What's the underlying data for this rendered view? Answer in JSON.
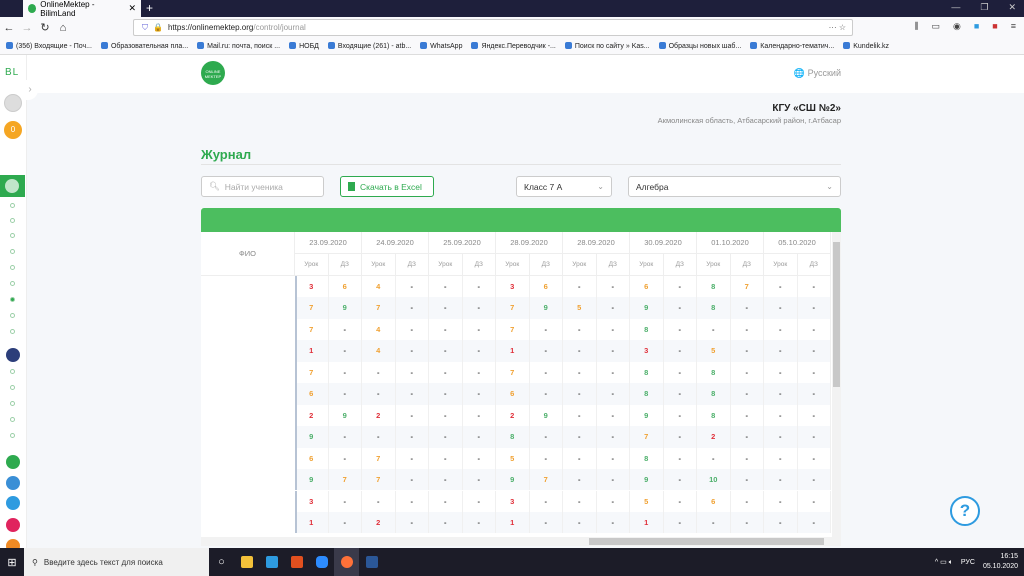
{
  "browser": {
    "tab_title": "OnlineMektep - BilimLand",
    "url_host": "https://onlinemektep.org",
    "url_path": "/control/journal",
    "bookmarks": [
      "(356) Входящие - Поч...",
      "Образовательная пла...",
      "Mail.ru: почта, поиск ...",
      "НОБД",
      "Входящие (261) - atb...",
      "WhatsApp",
      "Яндекс.Переводчик -...",
      "Поиск по сайту » Kas...",
      "Образцы новых шаб...",
      "Календарно-тематич...",
      "Kundelik.kz"
    ]
  },
  "sidebar": {
    "brand": "BL",
    "coins": "0"
  },
  "header": {
    "lang": "Русский"
  },
  "school": {
    "name": "КГУ «СШ №2»",
    "address": "Акмолинская область, Атбасарский район, г.Атбасар"
  },
  "page": {
    "title": "Журнал",
    "search_placeholder": "Найти ученика",
    "excel_label": "Скачать в Excel",
    "class_select": "Класс 7 А",
    "subject_select": "Алгебра"
  },
  "table": {
    "fio_header": "ФИО",
    "dates": [
      "23.09.2020",
      "24.09.2020",
      "25.09.2020",
      "28.09.2020",
      "28.09.2020",
      "30.09.2020",
      "01.10.2020",
      "05.10.2020"
    ],
    "sub_headers": [
      "Урок",
      "ДЗ"
    ],
    "rows": [
      [
        "3",
        "6",
        "4",
        "-",
        "-",
        "-",
        "3",
        "6",
        "-",
        "-",
        "6",
        "-",
        "8",
        "7",
        "-",
        "-"
      ],
      [
        "7",
        "9",
        "7",
        "-",
        "-",
        "-",
        "7",
        "9",
        "5",
        "-",
        "9",
        "-",
        "8",
        "-",
        "-",
        "-"
      ],
      [
        "7",
        "-",
        "4",
        "-",
        "-",
        "-",
        "7",
        "-",
        "-",
        "-",
        "8",
        "-",
        "-",
        "-",
        "-",
        "-"
      ],
      [
        "1",
        "-",
        "4",
        "-",
        "-",
        "-",
        "1",
        "-",
        "-",
        "-",
        "3",
        "-",
        "5",
        "-",
        "-",
        "-"
      ],
      [
        "7",
        "-",
        "-",
        "-",
        "-",
        "-",
        "7",
        "-",
        "-",
        "-",
        "8",
        "-",
        "8",
        "-",
        "-",
        "-"
      ],
      [
        "6",
        "-",
        "-",
        "-",
        "-",
        "-",
        "6",
        "-",
        "-",
        "-",
        "8",
        "-",
        "8",
        "-",
        "-",
        "-"
      ],
      [
        "2",
        "9",
        "2",
        "-",
        "-",
        "-",
        "2",
        "9",
        "-",
        "-",
        "9",
        "-",
        "8",
        "-",
        "-",
        "-"
      ],
      [
        "9",
        "-",
        "-",
        "-",
        "-",
        "-",
        "8",
        "-",
        "-",
        "-",
        "7",
        "-",
        "2",
        "-",
        "-",
        "-"
      ],
      [
        "6",
        "-",
        "7",
        "-",
        "-",
        "-",
        "5",
        "-",
        "-",
        "-",
        "8",
        "-",
        "-",
        "-",
        "-",
        "-"
      ],
      [
        "9",
        "7",
        "7",
        "-",
        "-",
        "-",
        "9",
        "7",
        "-",
        "-",
        "9",
        "-",
        "10",
        "-",
        "-",
        "-"
      ],
      [
        "3",
        "-",
        "-",
        "-",
        "-",
        "-",
        "3",
        "-",
        "-",
        "-",
        "5",
        "-",
        "6",
        "-",
        "-",
        "-"
      ],
      [
        "1",
        "-",
        "2",
        "-",
        "-",
        "-",
        "1",
        "-",
        "-",
        "-",
        "1",
        "-",
        "-",
        "-",
        "-",
        "-"
      ]
    ]
  },
  "colors": {
    "brand": "#2eaa4f",
    "low": "#e0303a",
    "mid": "#f0a030",
    "high": "#4caf6a",
    "dash": "#333333"
  },
  "help": "?",
  "taskbar": {
    "search_placeholder": "Введите здесь текст для поиска",
    "lang": "РУС",
    "time": "16:15",
    "date": "05.10.2020"
  }
}
